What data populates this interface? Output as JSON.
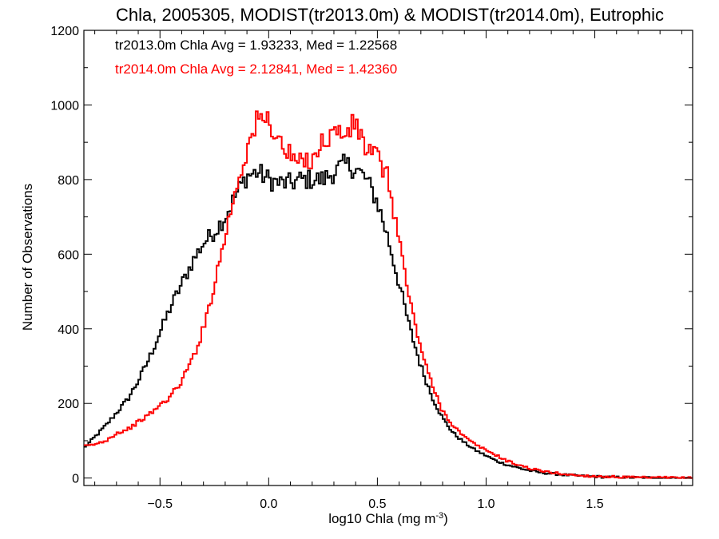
{
  "chart_data": {
    "type": "line",
    "step": true,
    "title": "Chla, 2005305, MODIST(tr2013.0m) & MODIST(tr2014.0m), Eutrophic",
    "xlabel": "log10 Chla (mg m",
    "xlabel_sup": "-3",
    "xlabel_close": ")",
    "ylabel": "Number of Observations",
    "xlim": [
      -0.85,
      1.95
    ],
    "ylim": [
      -20,
      1200
    ],
    "xticks": [
      -0.5,
      0.0,
      0.5,
      1.0,
      1.5
    ],
    "xtick_labels": [
      "−0.5",
      "0.0",
      "0.5",
      "1.0",
      "1.5"
    ],
    "yticks": [
      0,
      200,
      400,
      600,
      800,
      1000,
      1200
    ],
    "ytick_labels": [
      "0",
      "200",
      "400",
      "600",
      "800",
      "1000",
      "1200"
    ],
    "grid": false,
    "legend_position": "top-left",
    "series": [
      {
        "legend": "tr2013.0m Chla Avg = 1.93233, Med = 1.22568",
        "color": "#000000",
        "x": [
          -0.85,
          -0.8,
          -0.75,
          -0.7,
          -0.65,
          -0.6,
          -0.55,
          -0.5,
          -0.45,
          -0.4,
          -0.35,
          -0.3,
          -0.25,
          -0.2,
          -0.15,
          -0.1,
          -0.05,
          0.0,
          0.05,
          0.1,
          0.15,
          0.2,
          0.25,
          0.3,
          0.35,
          0.4,
          0.45,
          0.5,
          0.55,
          0.6,
          0.65,
          0.7,
          0.75,
          0.8,
          0.85,
          0.9,
          0.95,
          1.0,
          1.05,
          1.1,
          1.15,
          1.2,
          1.25,
          1.3,
          1.35,
          1.4,
          1.45,
          1.5,
          1.55,
          1.6,
          1.65,
          1.7,
          1.75,
          1.8,
          1.85,
          1.9,
          1.95
        ],
        "y": [
          80,
          110,
          140,
          175,
          210,
          260,
          320,
          390,
          460,
          520,
          580,
          630,
          660,
          700,
          760,
          810,
          820,
          800,
          790,
          790,
          800,
          800,
          800,
          820,
          840,
          830,
          800,
          740,
          640,
          520,
          400,
          300,
          220,
          160,
          120,
          95,
          75,
          60,
          45,
          35,
          27,
          20,
          15,
          12,
          9,
          7,
          5,
          4,
          3,
          2,
          2,
          1,
          1,
          1,
          0,
          0,
          0
        ]
      },
      {
        "legend": "tr2014.0m Chla Avg = 2.12841, Med = 1.42360",
        "color": "#ff0000",
        "x": [
          -0.85,
          -0.8,
          -0.75,
          -0.7,
          -0.65,
          -0.6,
          -0.55,
          -0.5,
          -0.45,
          -0.4,
          -0.35,
          -0.3,
          -0.25,
          -0.2,
          -0.15,
          -0.1,
          -0.05,
          0.0,
          0.05,
          0.1,
          0.15,
          0.2,
          0.25,
          0.3,
          0.35,
          0.4,
          0.45,
          0.5,
          0.55,
          0.6,
          0.65,
          0.7,
          0.75,
          0.8,
          0.85,
          0.9,
          0.95,
          1.0,
          1.05,
          1.1,
          1.15,
          1.2,
          1.25,
          1.3,
          1.35,
          1.4,
          1.45,
          1.5,
          1.55,
          1.6,
          1.65,
          1.7,
          1.75,
          1.8,
          1.85,
          1.9,
          1.95
        ],
        "y": [
          85,
          90,
          100,
          120,
          130,
          150,
          170,
          195,
          220,
          260,
          320,
          400,
          520,
          650,
          780,
          880,
          960,
          960,
          900,
          860,
          840,
          860,
          900,
          930,
          920,
          950,
          880,
          860,
          800,
          640,
          470,
          350,
          250,
          180,
          140,
          110,
          90,
          75,
          60,
          45,
          35,
          26,
          19,
          15,
          11,
          8,
          6,
          5,
          4,
          3,
          2,
          1,
          1,
          1,
          1,
          0,
          0
        ]
      }
    ]
  }
}
